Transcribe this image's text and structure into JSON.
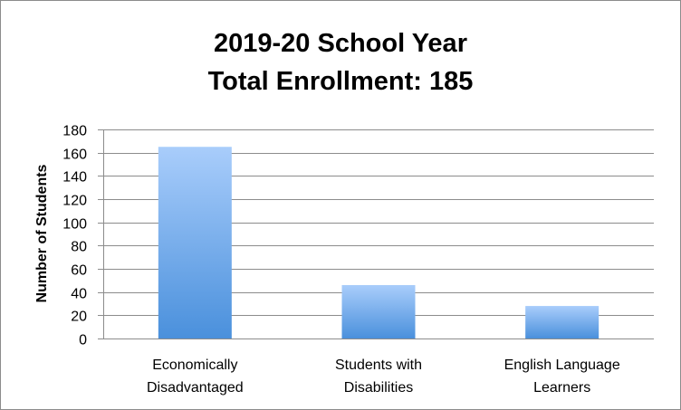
{
  "chart_data": {
    "type": "bar",
    "title": [
      "2019-20 School Year",
      "Total Enrollment: 185"
    ],
    "categories": [
      [
        "Economically",
        "Disadvantaged"
      ],
      [
        "Students with",
        "Disabilities"
      ],
      [
        "English Language",
        "Learners"
      ]
    ],
    "values": [
      165,
      46,
      28
    ],
    "xlabel": "",
    "ylabel": "Number of Students",
    "ylim": [
      0,
      180
    ],
    "yticks": [
      0,
      20,
      40,
      60,
      80,
      100,
      120,
      140,
      160,
      180
    ],
    "grid": true,
    "legend": "none",
    "colors": {
      "bar_top": "#a9cdfb",
      "bar_bottom": "#4a90dc",
      "grid": "#8c8c8c"
    }
  }
}
